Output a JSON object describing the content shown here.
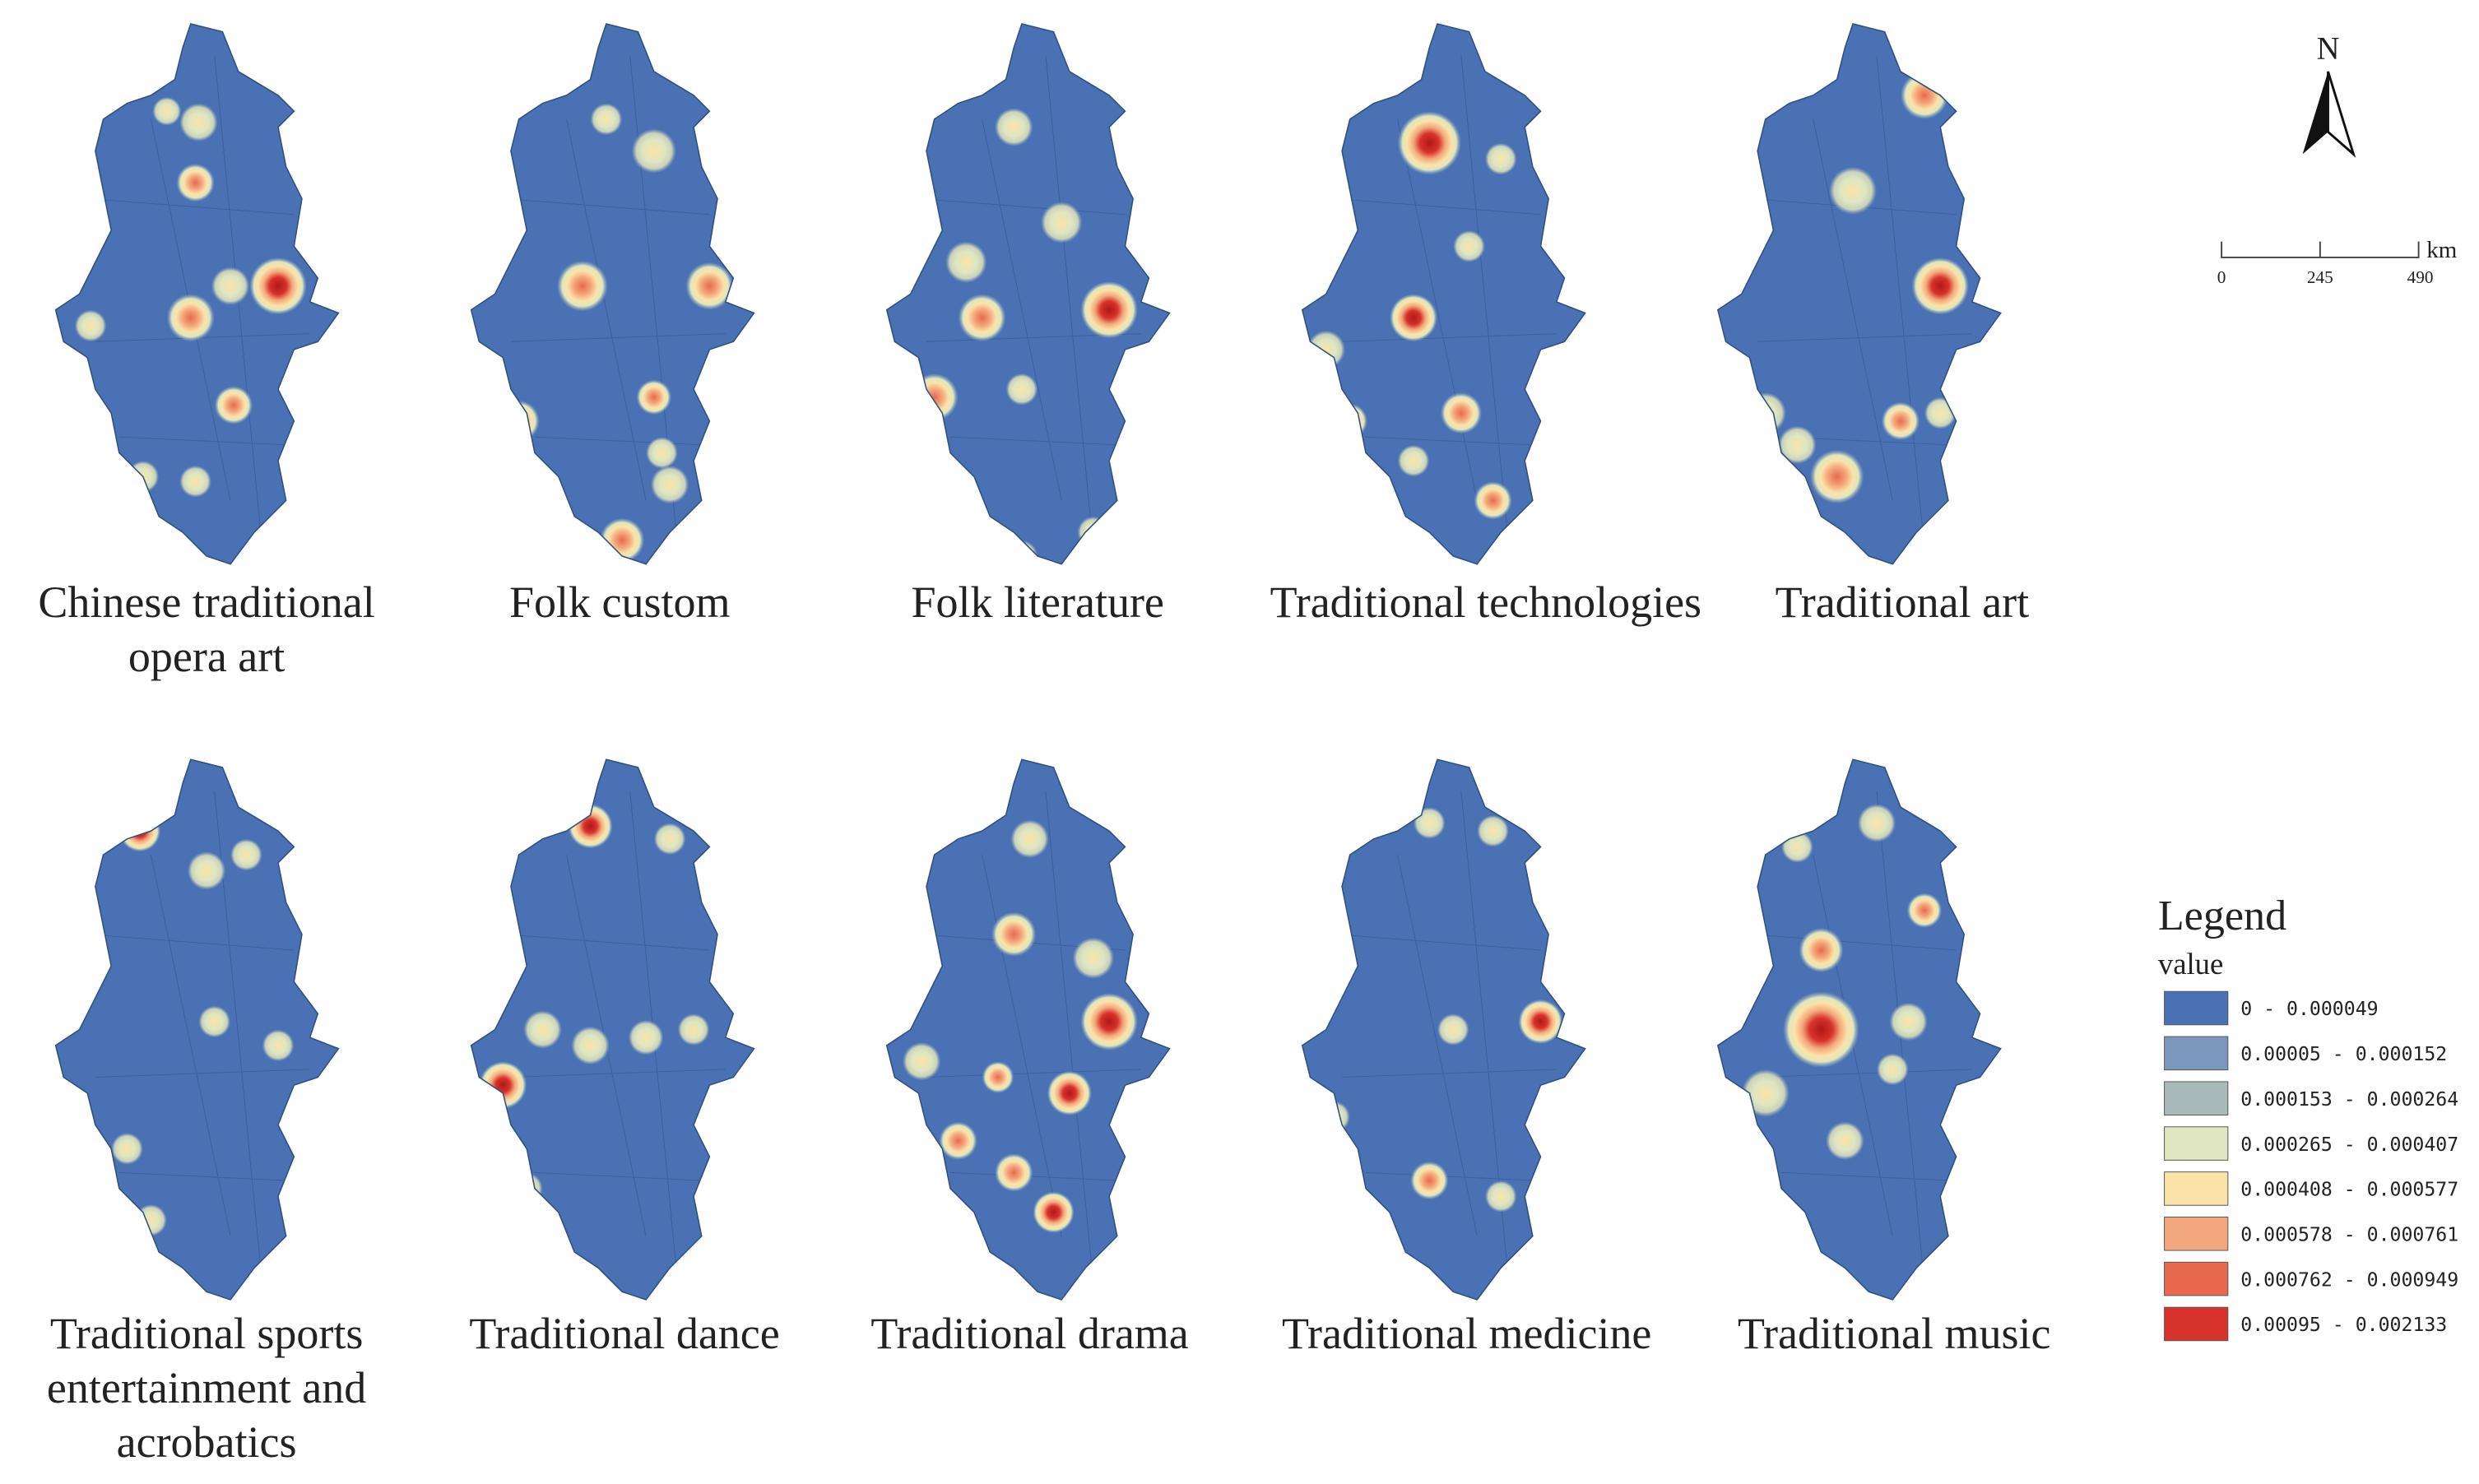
{
  "panels": [
    {
      "title": "Chinese traditional opera art"
    },
    {
      "title": "Folk custom"
    },
    {
      "title": "Folk literature"
    },
    {
      "title": "Traditional technologies"
    },
    {
      "title": "Traditional art"
    },
    {
      "title": "Traditional sports entertainment and acrobatics"
    },
    {
      "title": "Traditional dance"
    },
    {
      "title": "Traditional drama"
    },
    {
      "title": "Traditional medicine"
    },
    {
      "title": "Traditional music"
    }
  ],
  "north": "N",
  "scale_bar": {
    "labels": [
      "0",
      "245",
      "490"
    ],
    "unit": "km"
  },
  "legend": {
    "title": "Legend",
    "subtitle": "value",
    "entries": [
      {
        "label": "0 - 0.000049",
        "color": "#4a71b3"
      },
      {
        "label": "0.00005 - 0.000152",
        "color": "#7b97bb"
      },
      {
        "label": "0.000153 - 0.000264",
        "color": "#a9b8b8"
      },
      {
        "label": "0.000265 - 0.000407",
        "color": "#dfe6c0"
      },
      {
        "label": "0.000408 - 0.000577",
        "color": "#fbe3a8"
      },
      {
        "label": "0.000578 - 0.000761",
        "color": "#f3a77c"
      },
      {
        "label": "0.000762 - 0.000949",
        "color": "#e8694e"
      },
      {
        "label": "0.00095 - 0.002133",
        "color": "#d7322b"
      }
    ]
  }
}
